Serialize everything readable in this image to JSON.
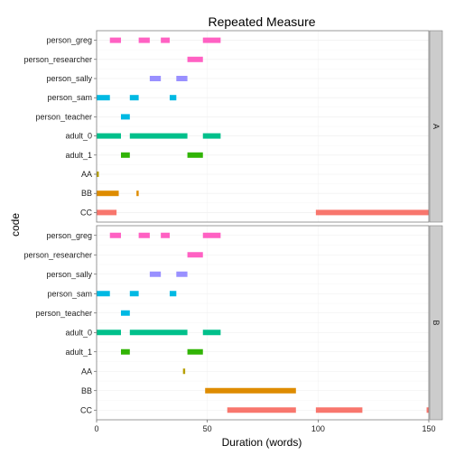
{
  "chart_data": {
    "type": "bar",
    "title": "Repeated Measure",
    "xlabel": "Duration (words)",
    "ylabel": "code",
    "xlim": [
      0,
      150
    ],
    "x_ticks": [
      0,
      50,
      100,
      150
    ],
    "categories": [
      "person_greg",
      "person_researcher",
      "person_sally",
      "person_sam",
      "person_teacher",
      "adult_0",
      "adult_1",
      "AA",
      "BB",
      "CC"
    ],
    "colors": {
      "person_greg": "#FF61C3",
      "person_researcher": "#FF61C3",
      "person_sally": "#9990FF",
      "person_sam": "#00B9E3",
      "person_teacher": "#00B9E3",
      "adult_0": "#00C08B",
      "adult_1": "#31B405",
      "AA": "#B79F00",
      "BB": "#DE8C00",
      "CC": "#F8766D"
    },
    "panels": [
      {
        "label": "A",
        "series": [
          {
            "code": "person_greg",
            "segments": [
              [
                6,
                11
              ],
              [
                19,
                24
              ],
              [
                29,
                33
              ],
              [
                48,
                56
              ]
            ]
          },
          {
            "code": "person_researcher",
            "segments": [
              [
                41,
                48
              ]
            ]
          },
          {
            "code": "person_sally",
            "segments": [
              [
                24,
                29
              ],
              [
                36,
                41
              ]
            ]
          },
          {
            "code": "person_sam",
            "segments": [
              [
                0,
                6
              ],
              [
                15,
                19
              ],
              [
                33,
                36
              ]
            ]
          },
          {
            "code": "person_teacher",
            "segments": [
              [
                11,
                15
              ]
            ]
          },
          {
            "code": "adult_0",
            "segments": [
              [
                0,
                11
              ],
              [
                15,
                41
              ],
              [
                48,
                56
              ]
            ]
          },
          {
            "code": "adult_1",
            "segments": [
              [
                11,
                15
              ],
              [
                41,
                48
              ]
            ]
          },
          {
            "code": "AA",
            "segments": [
              [
                0,
                1
              ]
            ]
          },
          {
            "code": "BB",
            "segments": [
              [
                0,
                10
              ],
              [
                18,
                19
              ]
            ]
          },
          {
            "code": "CC",
            "segments": [
              [
                0,
                9
              ],
              [
                99,
                150
              ]
            ]
          }
        ]
      },
      {
        "label": "B",
        "series": [
          {
            "code": "person_greg",
            "segments": [
              [
                6,
                11
              ],
              [
                19,
                24
              ],
              [
                29,
                33
              ],
              [
                48,
                56
              ]
            ]
          },
          {
            "code": "person_researcher",
            "segments": [
              [
                41,
                48
              ]
            ]
          },
          {
            "code": "person_sally",
            "segments": [
              [
                24,
                29
              ],
              [
                36,
                41
              ]
            ]
          },
          {
            "code": "person_sam",
            "segments": [
              [
                0,
                6
              ],
              [
                15,
                19
              ],
              [
                33,
                36
              ]
            ]
          },
          {
            "code": "person_teacher",
            "segments": [
              [
                11,
                15
              ]
            ]
          },
          {
            "code": "adult_0",
            "segments": [
              [
                0,
                11
              ],
              [
                15,
                41
              ],
              [
                48,
                56
              ]
            ]
          },
          {
            "code": "adult_1",
            "segments": [
              [
                11,
                15
              ],
              [
                41,
                48
              ]
            ]
          },
          {
            "code": "AA",
            "segments": [
              [
                39,
                40
              ]
            ]
          },
          {
            "code": "BB",
            "segments": [
              [
                49,
                90
              ]
            ]
          },
          {
            "code": "CC",
            "segments": [
              [
                59,
                90
              ],
              [
                99,
                120
              ],
              [
                149,
                150
              ]
            ]
          }
        ]
      }
    ],
    "grid": true,
    "legend": "none"
  }
}
